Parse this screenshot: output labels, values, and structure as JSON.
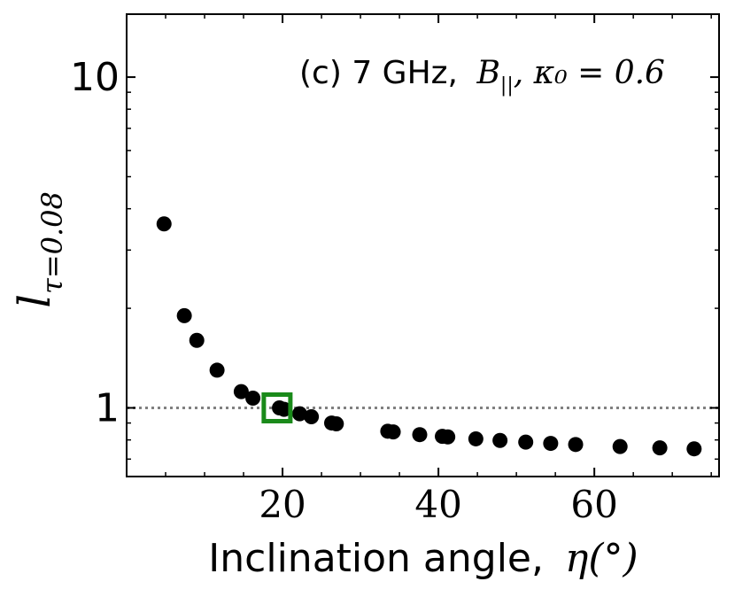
{
  "chart_data": {
    "type": "scatter",
    "title": "",
    "annotation": {
      "text": "(c) 7 GHz,",
      "math_B": "B",
      "math_B_sub": "||",
      "math_rest": ", κ₀ = 0.6"
    },
    "xlabel": {
      "text": "Inclination angle,",
      "math": "η(°)"
    },
    "ylabel": {
      "base": "l",
      "subscript": "τ=0.08"
    },
    "xscale": "linear",
    "yscale": "log",
    "xlim": [
      0,
      76
    ],
    "ylim": [
      0.62,
      15.5
    ],
    "xticks": [
      20,
      40,
      60
    ],
    "xtick_labels": [
      "20",
      "40",
      "60"
    ],
    "yticks": [
      1,
      10
    ],
    "ytick_labels": [
      "1",
      "10"
    ],
    "reference_line": {
      "y": 1,
      "style": "dotted",
      "color": "#808080"
    },
    "highlight": {
      "x": 19.3,
      "y": 1.0,
      "marker": "square",
      "color": "#1a8a1a"
    },
    "series": [
      {
        "name": "data",
        "color": "#000000",
        "marker": "circle",
        "x": [
          4.8,
          7.4,
          9.0,
          11.6,
          14.7,
          16.2,
          19.6,
          20.2,
          22.2,
          23.7,
          26.3,
          26.9,
          33.5,
          34.2,
          37.6,
          40.5,
          41.2,
          44.8,
          47.9,
          51.2,
          54.4,
          57.6,
          63.3,
          68.4,
          72.8
        ],
        "y": [
          3.6,
          1.9,
          1.6,
          1.3,
          1.12,
          1.07,
          1.0,
          0.99,
          0.96,
          0.94,
          0.9,
          0.895,
          0.85,
          0.846,
          0.83,
          0.82,
          0.817,
          0.806,
          0.797,
          0.788,
          0.781,
          0.775,
          0.764,
          0.757,
          0.752
        ]
      }
    ]
  }
}
